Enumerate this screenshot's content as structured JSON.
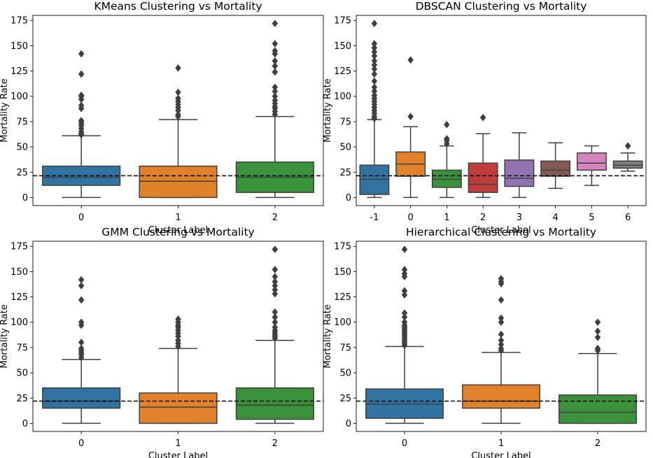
{
  "chart_data": [
    {
      "type": "box",
      "title": "KMeans Clustering vs Mortality",
      "xlabel": "Cluster Label",
      "ylabel": "Mortality Rate",
      "ylim": [
        -8,
        180
      ],
      "yticks": [
        0,
        25,
        50,
        75,
        100,
        125,
        150,
        175
      ],
      "reference_line": 21.5,
      "categories": [
        "0",
        "1",
        "2"
      ],
      "boxes": [
        {
          "color": "#3274a1",
          "whisker_low": 0,
          "q1": 12,
          "median": 20,
          "q3": 31,
          "whisker_high": 61,
          "outliers": [
            62,
            63,
            65,
            68,
            71,
            73,
            75,
            76,
            88,
            91,
            97,
            100,
            101,
            122,
            142
          ]
        },
        {
          "color": "#e1812c",
          "whisker_low": 0,
          "q1": 0,
          "median": 16,
          "q3": 31,
          "whisker_high": 77,
          "outliers": [
            80,
            82,
            86,
            89,
            92,
            95,
            98,
            104,
            128
          ]
        },
        {
          "color": "#3a923a",
          "whisker_low": 0,
          "q1": 5,
          "median": 20,
          "q3": 35,
          "whisker_high": 80,
          "outliers": [
            82,
            85,
            88,
            90,
            93,
            96,
            100,
            105,
            109,
            124,
            130,
            135,
            142,
            145,
            152,
            172
          ]
        }
      ]
    },
    {
      "type": "box",
      "title": "DBSCAN Clustering vs Mortality",
      "xlabel": "Cluster Label",
      "ylabel": "Mortality Rate",
      "ylim": [
        -8,
        180
      ],
      "yticks": [
        0,
        25,
        50,
        75,
        100,
        125,
        150,
        175
      ],
      "reference_line": 21.5,
      "categories": [
        "-1",
        "0",
        "1",
        "2",
        "3",
        "4",
        "5",
        "6"
      ],
      "boxes": [
        {
          "color": "#3274a1",
          "whisker_low": 0,
          "q1": 3,
          "median": 18,
          "q3": 32,
          "whisker_high": 77,
          "outliers": [
            78,
            80,
            83,
            86,
            89,
            92,
            95,
            98,
            101,
            105,
            109,
            115,
            122,
            127,
            131,
            135,
            140,
            144,
            148,
            152,
            172
          ]
        },
        {
          "color": "#e1812c",
          "whisker_low": 0,
          "q1": 21,
          "median": 33,
          "q3": 45,
          "whisker_high": 70,
          "outliers": [
            80,
            136
          ]
        },
        {
          "color": "#3a923a",
          "whisker_low": 0,
          "q1": 10,
          "median": 18,
          "q3": 27,
          "whisker_high": 51,
          "outliers": [
            53,
            56,
            58,
            72
          ]
        },
        {
          "color": "#c03d3e",
          "whisker_low": 0,
          "q1": 5,
          "median": 13,
          "q3": 34,
          "whisker_high": 63,
          "outliers": [
            79
          ]
        },
        {
          "color": "#9372b2",
          "whisker_low": 0,
          "q1": 11,
          "median": 19,
          "q3": 37,
          "whisker_high": 64,
          "outliers": []
        },
        {
          "color": "#845b53",
          "whisker_low": 9,
          "q1": 21,
          "median": 27,
          "q3": 36,
          "whisker_high": 54,
          "outliers": []
        },
        {
          "color": "#d684bd",
          "whisker_low": 12,
          "q1": 27,
          "median": 34,
          "q3": 44,
          "whisker_high": 51,
          "outliers": []
        },
        {
          "color": "#7f7f7f",
          "whisker_low": 26,
          "q1": 29,
          "median": 32,
          "q3": 36,
          "whisker_high": 44,
          "outliers": [
            51
          ]
        }
      ]
    },
    {
      "type": "box",
      "title": "GMM Clustering vs Mortality",
      "xlabel": "Cluster Label",
      "ylabel": "Mortality Rate",
      "ylim": [
        -8,
        180
      ],
      "yticks": [
        0,
        25,
        50,
        75,
        100,
        125,
        150,
        175
      ],
      "reference_line": 22,
      "categories": [
        "0",
        "1",
        "2"
      ],
      "boxes": [
        {
          "color": "#3274a1",
          "whisker_low": 0,
          "q1": 15,
          "median": 22,
          "q3": 35,
          "whisker_high": 63,
          "outliers": [
            65,
            68,
            70,
            72,
            74,
            80,
            97,
            100,
            122,
            136,
            142
          ]
        },
        {
          "color": "#e1812c",
          "whisker_low": 0,
          "q1": 0,
          "median": 16,
          "q3": 30,
          "whisker_high": 74,
          "outliers": [
            76,
            79,
            82,
            86,
            89,
            92,
            95,
            97,
            100,
            103
          ]
        },
        {
          "color": "#3a923a",
          "whisker_low": 0,
          "q1": 4,
          "median": 18,
          "q3": 35,
          "whisker_high": 82,
          "outliers": [
            84,
            86,
            88,
            90,
            92,
            95,
            100,
            105,
            110,
            128,
            132,
            136,
            140,
            145,
            152,
            172
          ]
        }
      ]
    },
    {
      "type": "box",
      "title": "Hierarchical Clustering vs Mortality",
      "xlabel": "Cluster Label",
      "ylabel": "Mortality Rate",
      "ylim": [
        -8,
        180
      ],
      "yticks": [
        0,
        25,
        50,
        75,
        100,
        125,
        150,
        175
      ],
      "reference_line": 22,
      "categories": [
        "0",
        "1",
        "2"
      ],
      "boxes": [
        {
          "color": "#3274a1",
          "whisker_low": 0,
          "q1": 5,
          "median": 19,
          "q3": 34,
          "whisker_high": 76,
          "outliers": [
            77,
            79,
            81,
            83,
            85,
            87,
            89,
            91,
            93,
            95,
            97,
            100,
            105,
            109,
            127,
            131,
            145,
            148,
            152,
            172
          ]
        },
        {
          "color": "#e1812c",
          "whisker_low": 0,
          "q1": 15,
          "median": 22,
          "q3": 38,
          "whisker_high": 70,
          "outliers": [
            72,
            74,
            78,
            82,
            88,
            100,
            104,
            122,
            138,
            140,
            143
          ]
        },
        {
          "color": "#3a923a",
          "whisker_low": 0,
          "q1": 0,
          "median": 11,
          "q3": 28,
          "whisker_high": 69,
          "outliers": [
            72,
            74,
            85,
            91,
            100
          ]
        }
      ]
    }
  ]
}
